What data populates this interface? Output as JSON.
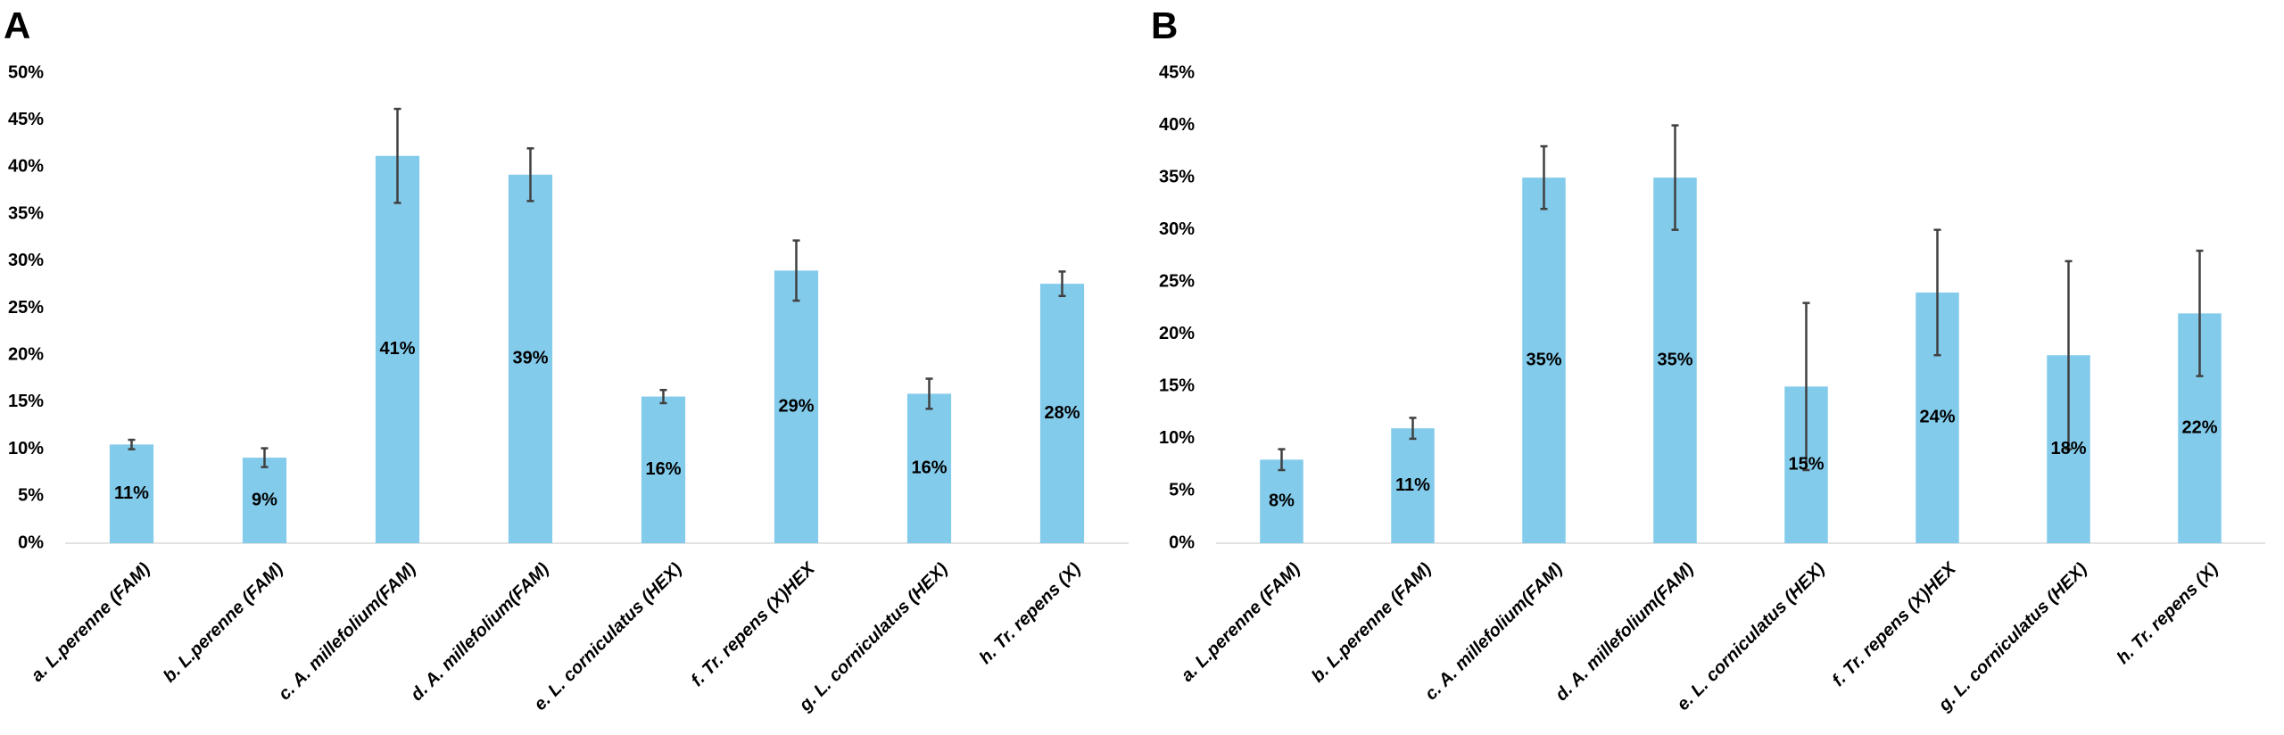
{
  "chart_data": [
    {
      "type": "bar",
      "title": "A",
      "categories": [
        "a. L.perenne (FAM)",
        "b. L.perenne (FAM)",
        "c. A. millefolium(FAM)",
        "d. A. millefolium(FAM)",
        "e. L. corniculatus (HEX)",
        "f. Tr. repens (X)HEX",
        "g. L. corniculatus (HEX)",
        "h. Tr. repens (X)"
      ],
      "values": [
        10.5,
        9.1,
        41.2,
        39.2,
        15.6,
        29.0,
        15.9,
        27.6
      ],
      "value_labels": [
        "11%",
        "9%",
        "41%",
        "39%",
        "16%",
        "29%",
        "16%",
        "28%"
      ],
      "errors": [
        0.5,
        1.0,
        5.0,
        2.8,
        0.7,
        3.2,
        1.6,
        1.3
      ],
      "color": "#83cbeb",
      "ylim": [
        0,
        50
      ],
      "yticks": [
        {
          "value": 0,
          "label": "0%"
        },
        {
          "value": 5,
          "label": "5%"
        },
        {
          "value": 10,
          "label": "10%"
        },
        {
          "value": 15,
          "label": "15%"
        },
        {
          "value": 20,
          "label": "20%"
        },
        {
          "value": 25,
          "label": "25%"
        },
        {
          "value": 30,
          "label": "30%"
        },
        {
          "value": 35,
          "label": "35%"
        },
        {
          "value": 40,
          "label": "40%"
        },
        {
          "value": 45,
          "label": "45%"
        },
        {
          "value": 50,
          "label": "50%"
        }
      ]
    },
    {
      "type": "bar",
      "title": "B",
      "categories": [
        "a. L.perenne (FAM)",
        "b. L.perenne (FAM)",
        "c. A. millefolium(FAM)",
        "d. A. millefolium(FAM)",
        "e. L. corniculatus (HEX)",
        "f. Tr. repens (X)HEX",
        "g. L. corniculatus (HEX)",
        "h. Tr. repens (X)"
      ],
      "values": [
        8,
        11,
        35,
        35,
        15,
        24,
        18,
        22
      ],
      "value_labels": [
        "8%",
        "11%",
        "35%",
        "35%",
        "15%",
        "24%",
        "18%",
        "22%"
      ],
      "errors": [
        1,
        1,
        3,
        5,
        8,
        6,
        9,
        6
      ],
      "color": "#83cbeb",
      "ylim": [
        0,
        45
      ],
      "yticks": [
        {
          "value": 0,
          "label": "0%"
        },
        {
          "value": 5,
          "label": "5%"
        },
        {
          "value": 10,
          "label": "10%"
        },
        {
          "value": 15,
          "label": "15%"
        },
        {
          "value": 20,
          "label": "20%"
        },
        {
          "value": 25,
          "label": "25%"
        },
        {
          "value": 30,
          "label": "30%"
        },
        {
          "value": 35,
          "label": "35%"
        },
        {
          "value": 40,
          "label": "40%"
        },
        {
          "value": 45,
          "label": "45%"
        }
      ]
    }
  ]
}
